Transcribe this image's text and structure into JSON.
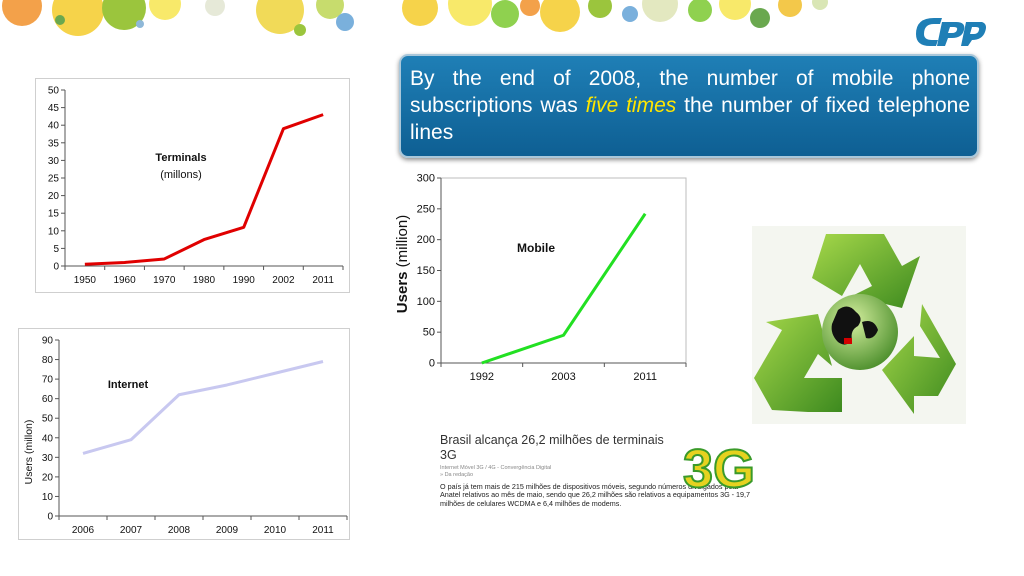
{
  "callout": {
    "before": "By the end of 2008, the number of  mobile phone subscriptions  was ",
    "highlight": "five times",
    "after": " the number  of fixed telephone lines"
  },
  "colors": {
    "terminals_line": "#e00000",
    "internet_line": "#c8c8f0",
    "mobile_line": "#22e022",
    "callout_bg": "#1270a8",
    "highlight": "#ffe600"
  },
  "icons": [
    "decorative-bubble-banner",
    "cpqd-logo",
    "recycle-globe-image",
    "3g-logo"
  ],
  "news": {
    "title": "Brasil alcança 26,2 milhões de terminais 3G",
    "meta1": "Internet Móvel 3G / 4G - Convergência Digital",
    "meta2": "» Da redação",
    "body": "O país já tem mais de 215 milhões de dispositivos móveis, segundo números divulgados pela Anatel relativos ao mês de maio, sendo que 26,2 milhões são relativos a equipamentos 3G - 19,7 milhões de celulares WCDMA e 6,4 milhões de modems.",
    "logo_text": "3G"
  },
  "chart_data": [
    {
      "type": "line",
      "title": "Terminals",
      "subtitle": "(millons)",
      "categories": [
        "1950",
        "1960",
        "1970",
        "1980",
        "1990",
        "2002",
        "2011"
      ],
      "series": [
        {
          "values": [
            0.5,
            1,
            2,
            7.5,
            11,
            39,
            43
          ]
        }
      ],
      "ylim": [
        0,
        50
      ],
      "yticks": [
        "0",
        "5",
        "10",
        "15",
        "20",
        "25",
        "30",
        "35",
        "40",
        "45",
        "50"
      ],
      "xlabel": "",
      "ylabel": "",
      "grid": false
    },
    {
      "type": "line",
      "title": "Internet",
      "categories": [
        "2006",
        "2007",
        "2008",
        "2009",
        "2010",
        "2011"
      ],
      "series": [
        {
          "values": [
            32,
            39,
            62,
            67,
            73,
            79
          ]
        }
      ],
      "ylim": [
        0,
        90
      ],
      "yticks": [
        "0",
        "10",
        "20",
        "30",
        "40",
        "50",
        "60",
        "70",
        "80",
        "90"
      ],
      "xlabel": "",
      "ylabel": "Users  (millon)",
      "grid": false
    },
    {
      "type": "line",
      "title": "Mobile",
      "categories": [
        "1992",
        "2003",
        "2011"
      ],
      "series": [
        {
          "values": [
            0,
            45,
            242
          ]
        }
      ],
      "ylim": [
        0,
        300
      ],
      "yticks": [
        "0",
        "50",
        "100",
        "150",
        "200",
        "250",
        "300"
      ],
      "xlabel": "",
      "ylabel_bold": "Users",
      "ylabel_rest": " (million)",
      "grid": false
    }
  ]
}
